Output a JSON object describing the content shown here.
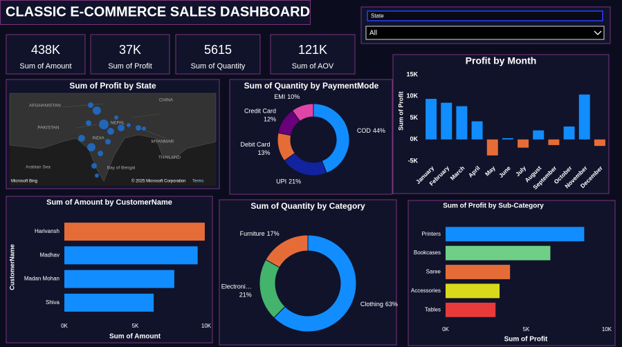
{
  "header": {
    "title": "CLASSIC E-COMMERCE SALES DASHBOARD"
  },
  "slicer": {
    "label": "State",
    "value": "All"
  },
  "kpis": [
    {
      "value": "438K",
      "label": "Sum of Amount"
    },
    {
      "value": "37K",
      "label": "Sum of Profit"
    },
    {
      "value": "5615",
      "label": "Sum of Quantity"
    },
    {
      "value": "121K",
      "label": "Sum of AOV"
    }
  ],
  "map": {
    "title": "Sum of Profit by State",
    "places": [
      "AFGHANISTAN",
      "PAKISTAN",
      "CHINA",
      "NEPAL",
      "INDIA",
      "MYANMAR",
      "THAILAND",
      "Arabian Sea",
      "Bay of Bengal"
    ],
    "credit": "Microsoft Bing",
    "copyright": "© 2025 Microsoft Corporation",
    "terms": "Terms"
  },
  "chart_data": [
    {
      "type": "bar",
      "title": "Profit by Month",
      "ylabel": "Sum of Profit",
      "categories": [
        "January",
        "February",
        "March",
        "April",
        "May",
        "June",
        "July",
        "August",
        "September",
        "October",
        "November",
        "December"
      ],
      "values": [
        9400,
        8500,
        7700,
        4200,
        -3700,
        300,
        -1900,
        2100,
        -1300,
        3000,
        10400,
        -1500
      ],
      "color": "#118dff",
      "negative_color": "#e66c37",
      "ylim": [
        -5000,
        15000
      ],
      "yticks": [
        {
          "value": -5000,
          "label": "-5K"
        },
        {
          "value": 0,
          "label": "0K"
        },
        {
          "value": 5000,
          "label": "5K"
        },
        {
          "value": 10000,
          "label": "10K"
        },
        {
          "value": 15000,
          "label": "15K"
        }
      ]
    },
    {
      "type": "donut",
      "title": "Sum of Quantity by PaymentMode",
      "categories": [
        "COD",
        "UPI",
        "Debit Card",
        "Credit Card",
        "EMI"
      ],
      "values": [
        44,
        21,
        13,
        12,
        10
      ],
      "value_labels": [
        "44%",
        "21%",
        "13%",
        "12%",
        "10%"
      ],
      "colors": [
        "#118dff",
        "#12239e",
        "#e66c37",
        "#6b007b",
        "#e044a7"
      ]
    },
    {
      "type": "hbar",
      "title": "Sum of Amount by CustomerName",
      "xlabel": "Sum of Amount",
      "ylabel": "CustomerName",
      "categories": [
        "Harivansh",
        "Madhav",
        "Madan Mohan",
        "Shiva"
      ],
      "values": [
        9900,
        9400,
        7750,
        6300
      ],
      "colors": [
        "#e66c37",
        "#118dff",
        "#118dff",
        "#118dff"
      ],
      "xlim": [
        0,
        10000
      ],
      "xticks": [
        {
          "value": 0,
          "label": "0K"
        },
        {
          "value": 5000,
          "label": "5K"
        },
        {
          "value": 10000,
          "label": "10K"
        }
      ]
    },
    {
      "type": "donut",
      "title": "Sum of Quantity by Category",
      "categories": [
        "Clothing",
        "Electroni…",
        "Furniture"
      ],
      "values": [
        63,
        21,
        17
      ],
      "value_labels": [
        "63%",
        "21%",
        "17%"
      ],
      "colors": [
        "#118dff",
        "#44b36b",
        "#e66c37"
      ]
    },
    {
      "type": "hbar",
      "title": "Sum of Profit by Sub-Category",
      "xlabel": "Sum of Profit",
      "categories": [
        "Printers",
        "Bookcases",
        "Saree",
        "Accessories",
        "Tables"
      ],
      "values": [
        8600,
        6500,
        4000,
        3350,
        3100
      ],
      "colors": [
        "#118dff",
        "#6fcf87",
        "#e66c37",
        "#d9d91c",
        "#e83a3a"
      ],
      "xlim": [
        0,
        10000
      ],
      "xticks": [
        {
          "value": 0,
          "label": "0K"
        },
        {
          "value": 5000,
          "label": "5K"
        },
        {
          "value": 10000,
          "label": "10K"
        }
      ]
    }
  ]
}
